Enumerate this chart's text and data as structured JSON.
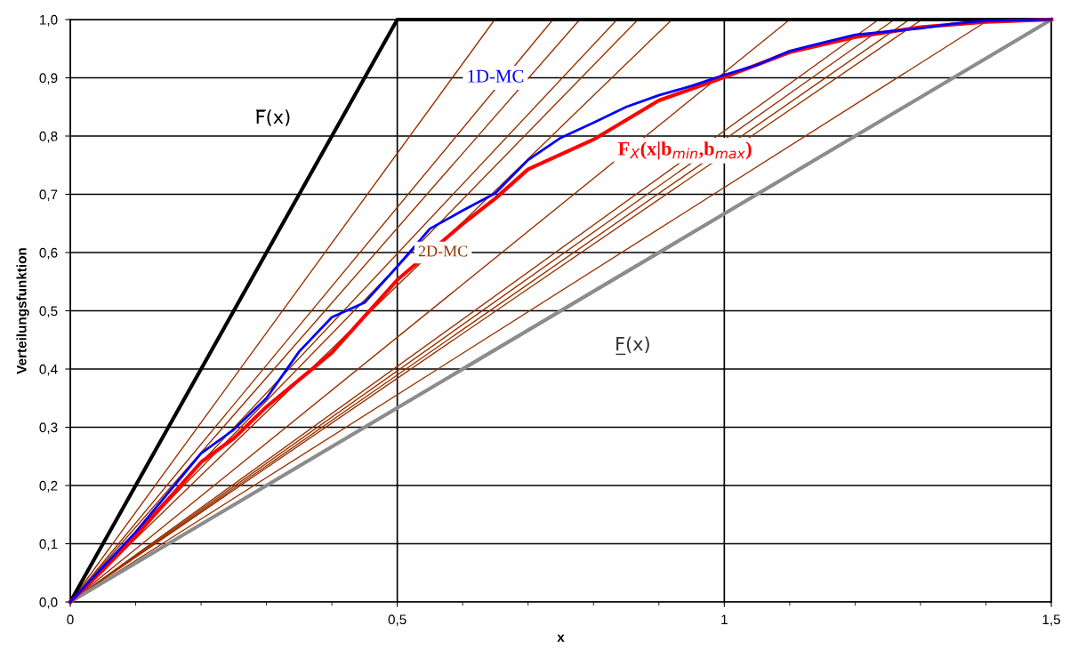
{
  "chart_data": {
    "type": "line",
    "xlabel": "x",
    "ylabel": "Verteilungsfunktion",
    "xlim": [
      0,
      1.5
    ],
    "ylim": [
      0,
      1.0
    ],
    "xticks": [
      0,
      {
        "value": 0.5,
        "label": "0,5"
      },
      1,
      {
        "value": 1.5,
        "label": "1,5"
      }
    ],
    "yticks": [
      {
        "value": 0,
        "label": "0,0"
      },
      {
        "value": 0.1,
        "label": "0,1"
      },
      {
        "value": 0.2,
        "label": "0,2"
      },
      {
        "value": 0.3,
        "label": "0,3"
      },
      {
        "value": 0.4,
        "label": "0,4"
      },
      {
        "value": 0.5,
        "label": "0,5"
      },
      {
        "value": 0.6,
        "label": "0,6"
      },
      {
        "value": 0.7,
        "label": "0,7"
      },
      {
        "value": 0.8,
        "label": "0,8"
      },
      {
        "value": 0.9,
        "label": "0,9"
      },
      {
        "value": 1.0,
        "label": "1,0"
      }
    ],
    "grid": true,
    "legend": false,
    "marker": "none",
    "line_style": "solid",
    "series": [
      {
        "name": "2D-MC",
        "color": "#993300",
        "x": [
          0,
          0.649,
          1.5
        ],
        "values": [
          0,
          1,
          1
        ]
      },
      {
        "color": "#993300",
        "x": [
          0,
          0.738,
          1.5
        ],
        "values": [
          0,
          1,
          1
        ]
      },
      {
        "color": "#993300",
        "x": [
          0,
          0.779,
          1.5
        ],
        "values": [
          0,
          1,
          1
        ]
      },
      {
        "color": "#993300",
        "x": [
          0,
          0.836,
          1.5
        ],
        "values": [
          0,
          1,
          1
        ]
      },
      {
        "color": "#993300",
        "x": [
          0,
          0.868,
          1.5
        ],
        "values": [
          0,
          1,
          1
        ]
      },
      {
        "color": "#993300",
        "x": [
          0,
          0.92,
          1.5
        ],
        "values": [
          0,
          1,
          1
        ]
      },
      {
        "color": "#993300",
        "x": [
          0,
          1.1,
          1.5
        ],
        "values": [
          0,
          1,
          1
        ]
      },
      {
        "color": "#993300",
        "x": [
          0,
          1.236,
          1.5
        ],
        "values": [
          0,
          1,
          1
        ]
      },
      {
        "color": "#993300",
        "x": [
          0,
          1.26,
          1.5
        ],
        "values": [
          0,
          1,
          1
        ]
      },
      {
        "color": "#993300",
        "x": [
          0,
          1.283,
          1.5
        ],
        "values": [
          0,
          1,
          1
        ]
      },
      {
        "color": "#993300",
        "x": [
          0,
          1.302,
          1.5
        ],
        "values": [
          0,
          1,
          1
        ]
      },
      {
        "color": "#993300",
        "x": [
          0,
          1.405,
          1.5
        ],
        "values": [
          0,
          1,
          1
        ]
      },
      {
        "name": "F̲(x)",
        "color": "#8c8c8c",
        "x": [
          0,
          1.5
        ],
        "values": [
          0,
          1
        ]
      },
      {
        "name": "F̅(x)",
        "color": "#000000",
        "x": [
          0,
          0.5,
          1.5
        ],
        "values": [
          0,
          1,
          1
        ]
      },
      {
        "name": "F$_{X}$(x|b$_{min}$,b$_{max}$)",
        "color": "#ff0000",
        "x": [
          0,
          0.05,
          0.1,
          0.2,
          0.25,
          0.3,
          0.4,
          0.5,
          0.6,
          0.65,
          0.7,
          0.8,
          0.9,
          1.0,
          1.1,
          1.2,
          1.3,
          1.4,
          1.5
        ],
        "values": [
          0,
          0.055,
          0.113,
          0.24,
          0.281,
          0.335,
          0.428,
          0.553,
          0.649,
          0.693,
          0.743,
          0.794,
          0.861,
          0.901,
          0.944,
          0.97,
          0.987,
          0.996,
          1
        ]
      },
      {
        "name": "1D-MC",
        "color": "#0000ff",
        "x": [
          0,
          0.05,
          0.1,
          0.2,
          0.25,
          0.3,
          0.35,
          0.4,
          0.45,
          0.5,
          0.55,
          0.6,
          0.65,
          0.7,
          0.75,
          0.8,
          0.85,
          0.9,
          0.95,
          1.0,
          1.05,
          1.1,
          1.15,
          1.2,
          1.3,
          1.35,
          1.4,
          1.5
        ],
        "values": [
          0,
          0.06,
          0.12,
          0.255,
          0.296,
          0.35,
          0.43,
          0.489,
          0.514,
          0.576,
          0.641,
          0.672,
          0.702,
          0.759,
          0.797,
          0.823,
          0.85,
          0.87,
          0.886,
          0.905,
          0.922,
          0.946,
          0.96,
          0.974,
          0.985,
          0.993,
          0.998,
          1
        ]
      }
    ]
  }
}
